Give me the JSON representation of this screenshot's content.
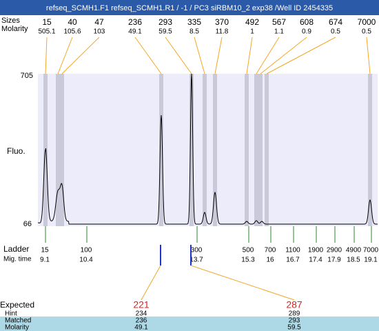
{
  "header": {
    "title": "refseq_SCMH1.F1  refseq_SCMH1.R1 / -1 / PC3 siRBM10_2 exp38 /Well ID 2454335"
  },
  "top": {
    "row_labels": [
      "Sizes",
      "Molarity"
    ],
    "peaks": [
      {
        "size": 15,
        "molarity": 505.1
      },
      {
        "size": 40,
        "molarity": 105.6
      },
      {
        "size": 47,
        "molarity": 103
      },
      {
        "size": 236,
        "molarity": 49.1
      },
      {
        "size": 293,
        "molarity": 59.5
      },
      {
        "size": 335,
        "molarity": 8.5
      },
      {
        "size": 370,
        "molarity": 11.8
      },
      {
        "size": 492,
        "molarity": 1
      },
      {
        "size": 567,
        "molarity": 1.1
      },
      {
        "size": 608,
        "molarity": 0.9
      },
      {
        "size": 674,
        "molarity": 0.5
      },
      {
        "size": 7000,
        "molarity": 0.5
      }
    ]
  },
  "plot": {
    "y_max": 705,
    "y_min": 66,
    "y_label": "Fluo."
  },
  "ladder": {
    "row_labels": [
      "Ladder",
      "Mig. time"
    ],
    "points": [
      {
        "size": 15,
        "time": 9.1
      },
      {
        "size": 100,
        "time": 10.4
      },
      {
        "size": 300,
        "time": 13.7
      },
      {
        "size": 500,
        "time": 15.3
      },
      {
        "size": 700,
        "time": 16
      },
      {
        "size": 1100,
        "time": 16.7
      },
      {
        "size": 1900,
        "time": 17.4
      },
      {
        "size": 2900,
        "time": 17.9
      },
      {
        "size": 4900,
        "time": 18.5
      },
      {
        "size": 7000,
        "time": 19.1
      }
    ]
  },
  "expected": {
    "row_labels": [
      "Expected",
      "Hint",
      "Matched",
      "Molarity"
    ],
    "columns": [
      {
        "expected": 221,
        "hint": 234,
        "matched": 236,
        "molarity": 49.1
      },
      {
        "expected": 287,
        "hint": 289,
        "matched": 293,
        "molarity": 59.5
      }
    ]
  }
}
